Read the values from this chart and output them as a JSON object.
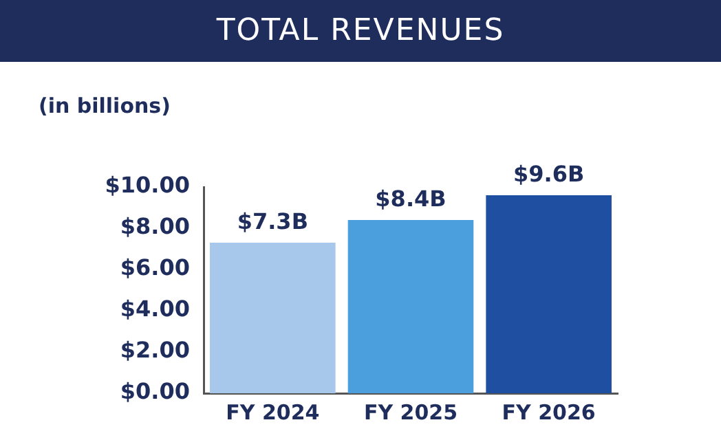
{
  "chart_data": {
    "type": "bar",
    "title": "TOTAL REVENUES",
    "ylabel": "(in billions)",
    "categories": [
      "FY 2024",
      "FY 2025",
      "FY 2026"
    ],
    "values": [
      7.3,
      8.4,
      9.6
    ],
    "colors": [
      "#a7c8ea",
      "#4a9fdc",
      "#1f4fa0"
    ],
    "value_labels": [
      "$7.3B",
      "$8.4B",
      "$9.6B"
    ],
    "ylim": [
      0,
      10
    ],
    "yticks": [
      {
        "value": 0,
        "label": "$0.00"
      },
      {
        "value": 2,
        "label": "$2.00"
      },
      {
        "value": 4,
        "label": "$4.00"
      },
      {
        "value": 6,
        "label": "$6.00"
      },
      {
        "value": 8,
        "label": "$8.00"
      },
      {
        "value": 10,
        "label": "$10.00"
      }
    ],
    "grid": false,
    "legend": false
  }
}
